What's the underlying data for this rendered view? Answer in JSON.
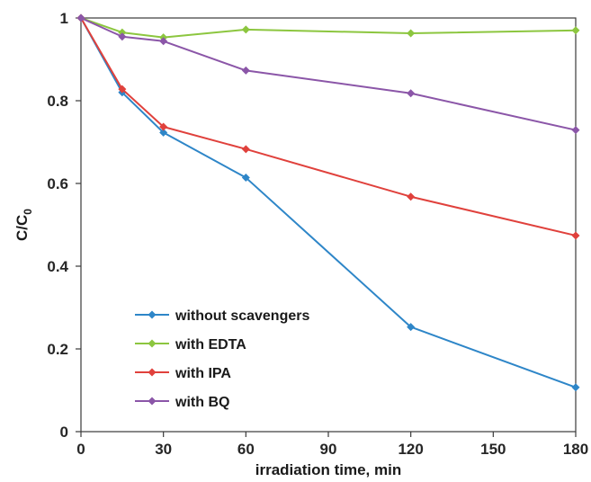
{
  "chart_data": {
    "type": "line",
    "title": "",
    "xlabel": "irradiation time, min",
    "ylabel": {
      "main": "C/C",
      "sub": "0"
    },
    "xlim": [
      0,
      180
    ],
    "ylim": [
      0,
      1
    ],
    "xticks": [
      0,
      30,
      60,
      90,
      120,
      150,
      180
    ],
    "yticks": [
      0,
      0.2,
      0.4,
      0.6,
      0.8,
      1
    ],
    "ytick_labels": [
      "0",
      "0.2",
      "0.4",
      "0.6",
      "0.8",
      "1"
    ],
    "grid": false,
    "legend_position": "bottom-left",
    "series": [
      {
        "name": "without scavengers",
        "color": "#2e86c8",
        "x": [
          0,
          15,
          30,
          60,
          120,
          180
        ],
        "y": [
          1.0,
          0.82,
          0.723,
          0.614,
          0.253,
          0.107
        ]
      },
      {
        "name": "with EDTA",
        "color": "#8cc63f",
        "x": [
          0,
          15,
          30,
          60,
          120,
          180
        ],
        "y": [
          1.0,
          0.965,
          0.953,
          0.972,
          0.963,
          0.97
        ]
      },
      {
        "name": "with IPA",
        "color": "#e0413c",
        "x": [
          0,
          15,
          30,
          60,
          120,
          180
        ],
        "y": [
          1.0,
          0.828,
          0.737,
          0.683,
          0.568,
          0.474
        ]
      },
      {
        "name": "with BQ",
        "color": "#8b56a8",
        "x": [
          0,
          15,
          30,
          60,
          120,
          180
        ],
        "y": [
          1.0,
          0.955,
          0.944,
          0.873,
          0.818,
          0.729
        ]
      }
    ]
  }
}
